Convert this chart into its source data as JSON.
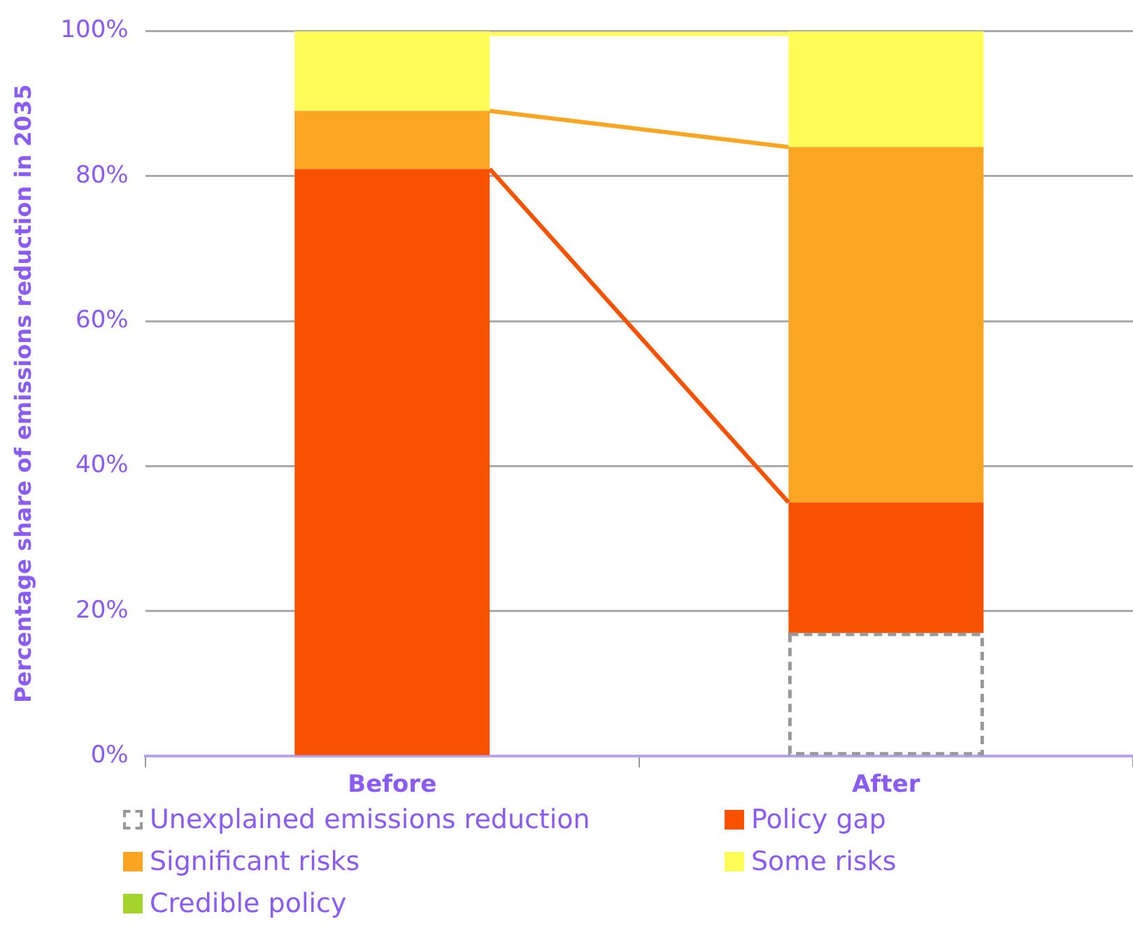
{
  "chart_data": {
    "type": "bar",
    "stacked": true,
    "ylabel": "Percentage share of emissions reduction in 2035",
    "categories": [
      "Before",
      "After"
    ],
    "series": [
      {
        "name": "Unexplained emissions reduction",
        "color": "#999999",
        "line_style": "dashed",
        "values": [
          0,
          17
        ]
      },
      {
        "name": "Policy gap",
        "color": "#f85200",
        "values": [
          81,
          18
        ]
      },
      {
        "name": "Significant risks",
        "color": "#faa622",
        "values": [
          8,
          49
        ]
      },
      {
        "name": "Some risks",
        "color": "#fffc57",
        "values": [
          11,
          16
        ]
      },
      {
        "name": "Credible policy",
        "color": "#a4d42c",
        "values": [
          0,
          0
        ]
      }
    ],
    "ylim": [
      0,
      100
    ],
    "yticks": [
      {
        "value": 0,
        "label": "0%"
      },
      {
        "value": 20,
        "label": "20%"
      },
      {
        "value": 40,
        "label": "40%"
      },
      {
        "value": 60,
        "label": "60%"
      },
      {
        "value": 80,
        "label": "80%"
      },
      {
        "value": 100,
        "label": "100%"
      }
    ],
    "grid": "y",
    "legend": "bottom"
  }
}
